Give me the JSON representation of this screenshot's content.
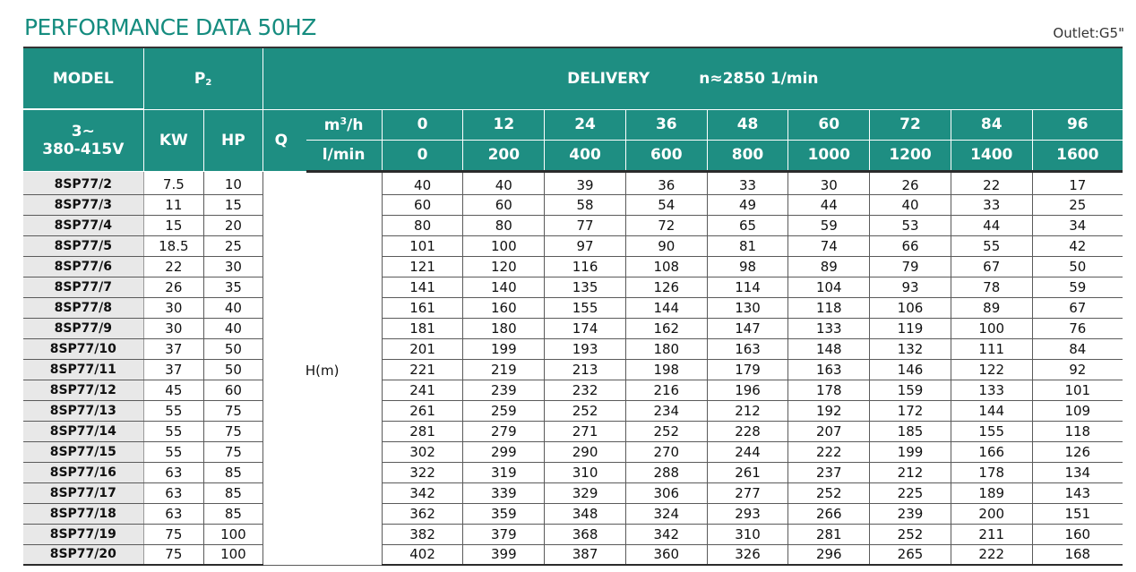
{
  "title": "PERFORMANCE DATA 50HZ",
  "outlet": "Outlet:G5\"",
  "header": {
    "model": "MODEL",
    "p2_main": "P",
    "p2_sub": "2",
    "delivery": "DELIVERY",
    "speed": "n≈2850  1/min",
    "phase": "3~",
    "voltage": "380-415V",
    "kw": "KW",
    "hp": "HP",
    "q": "Q",
    "unit_m3h_pre": "m",
    "unit_m3h_sup": "3",
    "unit_m3h_post": "/h",
    "unit_lmin": "l/min",
    "flows_m3h": [
      "0",
      "12",
      "24",
      "36",
      "48",
      "60",
      "72",
      "84",
      "96"
    ],
    "flows_lmin": [
      "0",
      "200",
      "400",
      "600",
      "800",
      "1000",
      "1200",
      "1400",
      "1600"
    ]
  },
  "head_unit": "H(m)",
  "rows": [
    {
      "model": "8SP77/2",
      "kw": "7.5",
      "hp": "10",
      "h": [
        "40",
        "40",
        "39",
        "36",
        "33",
        "30",
        "26",
        "22",
        "17"
      ]
    },
    {
      "model": "8SP77/3",
      "kw": "11",
      "hp": "15",
      "h": [
        "60",
        "60",
        "58",
        "54",
        "49",
        "44",
        "40",
        "33",
        "25"
      ]
    },
    {
      "model": "8SP77/4",
      "kw": "15",
      "hp": "20",
      "h": [
        "80",
        "80",
        "77",
        "72",
        "65",
        "59",
        "53",
        "44",
        "34"
      ]
    },
    {
      "model": "8SP77/5",
      "kw": "18.5",
      "hp": "25",
      "h": [
        "101",
        "100",
        "97",
        "90",
        "81",
        "74",
        "66",
        "55",
        "42"
      ]
    },
    {
      "model": "8SP77/6",
      "kw": "22",
      "hp": "30",
      "h": [
        "121",
        "120",
        "116",
        "108",
        "98",
        "89",
        "79",
        "67",
        "50"
      ]
    },
    {
      "model": "8SP77/7",
      "kw": "26",
      "hp": "35",
      "h": [
        "141",
        "140",
        "135",
        "126",
        "114",
        "104",
        "93",
        "78",
        "59"
      ]
    },
    {
      "model": "8SP77/8",
      "kw": "30",
      "hp": "40",
      "h": [
        "161",
        "160",
        "155",
        "144",
        "130",
        "118",
        "106",
        "89",
        "67"
      ]
    },
    {
      "model": "8SP77/9",
      "kw": "30",
      "hp": "40",
      "h": [
        "181",
        "180",
        "174",
        "162",
        "147",
        "133",
        "119",
        "100",
        "76"
      ]
    },
    {
      "model": "8SP77/10",
      "kw": "37",
      "hp": "50",
      "h": [
        "201",
        "199",
        "193",
        "180",
        "163",
        "148",
        "132",
        "111",
        "84"
      ]
    },
    {
      "model": "8SP77/11",
      "kw": "37",
      "hp": "50",
      "h": [
        "221",
        "219",
        "213",
        "198",
        "179",
        "163",
        "146",
        "122",
        "92"
      ]
    },
    {
      "model": "8SP77/12",
      "kw": "45",
      "hp": "60",
      "h": [
        "241",
        "239",
        "232",
        "216",
        "196",
        "178",
        "159",
        "133",
        "101"
      ]
    },
    {
      "model": "8SP77/13",
      "kw": "55",
      "hp": "75",
      "h": [
        "261",
        "259",
        "252",
        "234",
        "212",
        "192",
        "172",
        "144",
        "109"
      ]
    },
    {
      "model": "8SP77/14",
      "kw": "55",
      "hp": "75",
      "h": [
        "281",
        "279",
        "271",
        "252",
        "228",
        "207",
        "185",
        "155",
        "118"
      ]
    },
    {
      "model": "8SP77/15",
      "kw": "55",
      "hp": "75",
      "h": [
        "302",
        "299",
        "290",
        "270",
        "244",
        "222",
        "199",
        "166",
        "126"
      ]
    },
    {
      "model": "8SP77/16",
      "kw": "63",
      "hp": "85",
      "h": [
        "322",
        "319",
        "310",
        "288",
        "261",
        "237",
        "212",
        "178",
        "134"
      ]
    },
    {
      "model": "8SP77/17",
      "kw": "63",
      "hp": "85",
      "h": [
        "342",
        "339",
        "329",
        "306",
        "277",
        "252",
        "225",
        "189",
        "143"
      ]
    },
    {
      "model": "8SP77/18",
      "kw": "63",
      "hp": "85",
      "h": [
        "362",
        "359",
        "348",
        "324",
        "293",
        "266",
        "239",
        "200",
        "151"
      ]
    },
    {
      "model": "8SP77/19",
      "kw": "75",
      "hp": "100",
      "h": [
        "382",
        "379",
        "368",
        "342",
        "310",
        "281",
        "252",
        "211",
        "160"
      ]
    },
    {
      "model": "8SP77/20",
      "kw": "75",
      "hp": "100",
      "h": [
        "402",
        "399",
        "387",
        "360",
        "326",
        "296",
        "265",
        "222",
        "168"
      ]
    }
  ]
}
